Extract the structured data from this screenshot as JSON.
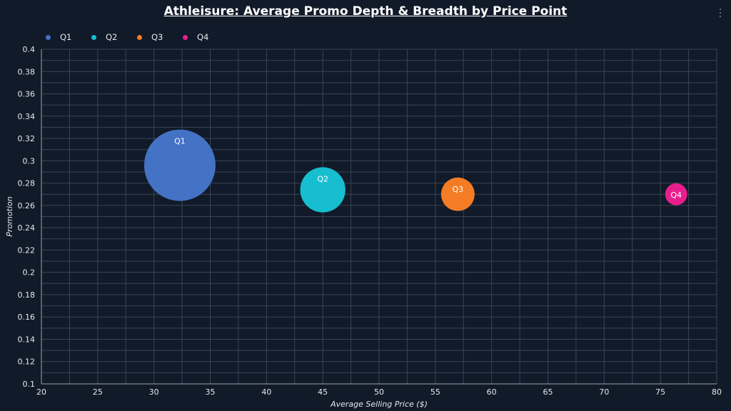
{
  "title": "Athleisure: Average Promo Depth & Breadth by Price Point",
  "menu": {
    "icon": "vertical-dots-icon"
  },
  "chart_data": {
    "type": "scatter",
    "subtype": "bubble",
    "title": "Athleisure: Average Promo Depth & Breadth by Price Point",
    "xlabel": "Average Selling Price ($)",
    "ylabel": "Promotion",
    "xlim": [
      20,
      80
    ],
    "ylim": [
      0.1,
      0.4
    ],
    "xticks": [
      "20",
      "25",
      "30",
      "35",
      "40",
      "45",
      "50",
      "55",
      "60",
      "65",
      "70",
      "75",
      "80"
    ],
    "yticks": [
      "0.1",
      "0.12",
      "0.14",
      "0.16",
      "0.18",
      "0.2",
      "0.22",
      "0.24",
      "0.26",
      "0.28",
      "0.3",
      "0.32",
      "0.34",
      "0.36",
      "0.38",
      "0.4"
    ],
    "grid": true,
    "legend_position": "top-left",
    "series": [
      {
        "name": "Q1",
        "color": "#4472c4",
        "x": 32.3,
        "y": 0.296,
        "size": 1.0
      },
      {
        "name": "Q2",
        "color": "#17becf",
        "x": 45.0,
        "y": 0.274,
        "size": 0.4
      },
      {
        "name": "Q3",
        "color": "#f47c24",
        "x": 57.0,
        "y": 0.27,
        "size": 0.22
      },
      {
        "name": "Q4",
        "color": "#e91e8c",
        "x": 76.4,
        "y": 0.27,
        "size": 0.095
      }
    ]
  }
}
